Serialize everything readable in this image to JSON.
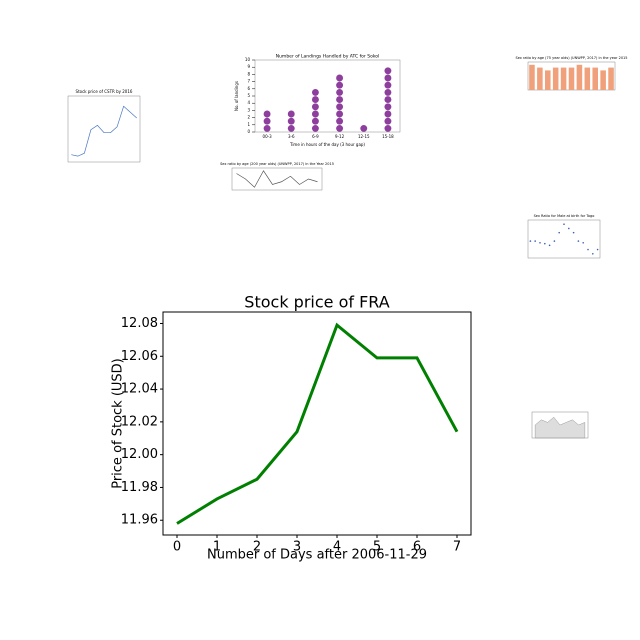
{
  "chart_data": [
    {
      "type": "line",
      "title": "Stock price of FRA",
      "x_label": "Number of Days after 2006-11-29",
      "y_label": "Price of Stock (USD)",
      "x": [
        0,
        1,
        2,
        3,
        4,
        5,
        6,
        7
      ],
      "values": [
        11.958,
        11.973,
        11.985,
        12.014,
        12.079,
        12.059,
        12.059,
        12.014
      ],
      "color": "#008000",
      "xlim": [
        -0.35,
        7.35
      ],
      "ylim": [
        11.951,
        12.087
      ],
      "xticks": [
        0,
        1,
        2,
        3,
        4,
        5,
        6,
        7
      ],
      "yticks": [
        11.96,
        11.98,
        {
          "value": 12,
          "label": "12.00"
        },
        12.02,
        12.04,
        12.06,
        12.08
      ]
    },
    {
      "type": "line",
      "title": "Stock price of CSTR by 2016",
      "values": [
        11.5,
        11.4,
        11.6,
        13.2,
        13.5,
        13.0,
        13.0,
        13.4,
        14.8,
        14.4,
        14.0
      ],
      "color": "#4a77c4",
      "ylim": [
        11,
        15.5
      ]
    },
    {
      "type": "dot",
      "title": "Number of Landings Handled by ATC for Sokol",
      "x_label": "Time in hours of the day (3 hour gap)",
      "y_label": "No. of landings",
      "categories": [
        "00-3",
        "3-6",
        "6-9",
        "9-12",
        "12-15",
        "15-18"
      ],
      "values": [
        3,
        3,
        6,
        8,
        1,
        9
      ],
      "color": "#8e3f9e",
      "ylim": [
        0,
        10
      ],
      "yticks": [
        0,
        1,
        2,
        3,
        4,
        5,
        6,
        7,
        8,
        9,
        10
      ]
    },
    {
      "type": "line",
      "title": "Sex ratio by age (200 year olds) (UNWPP, 2017) in the Year 2015",
      "values": [
        100,
        98,
        95,
        101,
        96,
        97,
        99,
        96,
        98,
        97
      ],
      "color": "#555555",
      "ylim": [
        94,
        102
      ]
    },
    {
      "type": "bar",
      "title": "Sex ratio by age (75 year olds) (UNWPP, 2017) in the year 2015",
      "values": [
        9,
        8,
        7,
        8,
        8,
        8,
        9,
        8,
        8,
        7,
        8
      ],
      "color": "#f0a07a",
      "ylim": [
        0,
        10
      ]
    },
    {
      "type": "scatter",
      "title": "Sex Ratio for Male at birth for Togo",
      "values": [
        103,
        103,
        102.8,
        102.7,
        102.5,
        103,
        104,
        105,
        104.5,
        104,
        103,
        102.8,
        102,
        101.5,
        102
      ],
      "color": "#3a5fb0",
      "ylim": [
        101,
        105.5
      ]
    },
    {
      "type": "area",
      "values": [
        5,
        7,
        6,
        8,
        5,
        6,
        7,
        5,
        6
      ],
      "color": "#bbbbbb",
      "ylim": [
        0,
        10
      ]
    }
  ]
}
